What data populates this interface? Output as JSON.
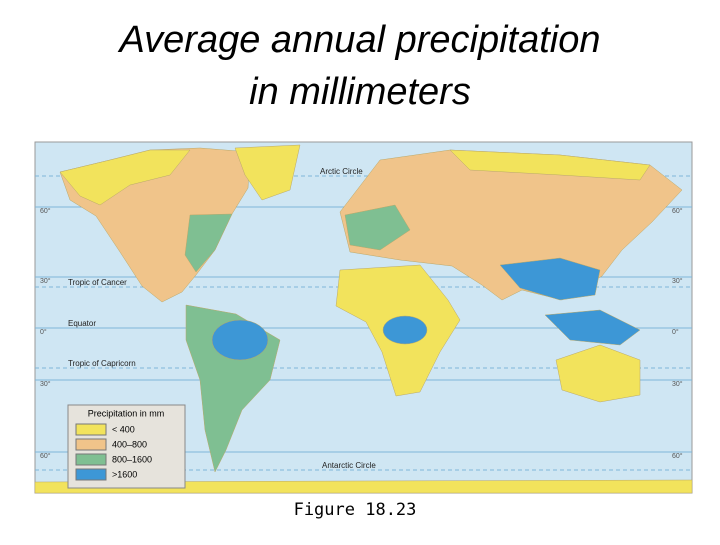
{
  "title": [
    "Average annual precipitation",
    "in millimeters"
  ],
  "map": {
    "circle_lines": [
      "Arctic Circle",
      "Tropic of Cancer",
      "Equator",
      "Tropic of Capricorn",
      "Antarctic Circle"
    ],
    "latitudes": [
      "60°",
      "30°",
      "0°",
      "30°",
      "60°"
    ],
    "legend": {
      "title": "Precipitation in mm",
      "items": [
        {
          "label": "< 400",
          "color": "#f2e35c"
        },
        {
          "label": "400–800",
          "color": "#f0c48a"
        },
        {
          "label": "800–1600",
          "color": "#7fbf92"
        },
        {
          "label": ">1600",
          "color": "#3d97d6"
        }
      ]
    }
  },
  "caption": "Figure 18.23"
}
